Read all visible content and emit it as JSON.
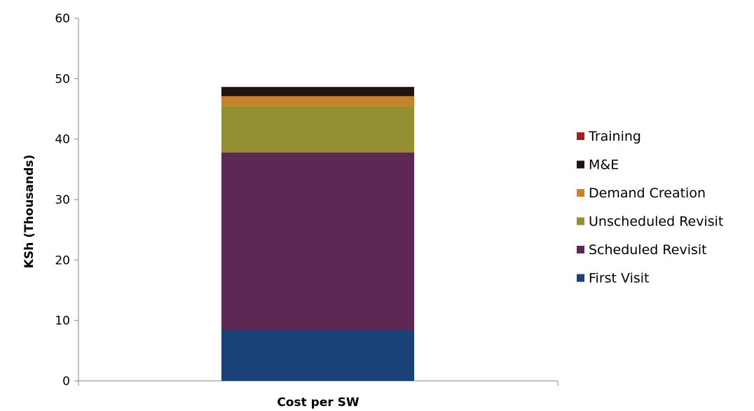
{
  "chart_data": {
    "type": "bar",
    "stacked": true,
    "categories": [
      "Cost per SW"
    ],
    "series": [
      {
        "name": "First Visit",
        "values": [
          8.4
        ],
        "color": "#1a4178"
      },
      {
        "name": "Scheduled Revisit",
        "values": [
          29.4
        ],
        "color": "#5e2855"
      },
      {
        "name": "Unscheduled Revisit",
        "values": [
          7.7
        ],
        "color": "#958f33"
      },
      {
        "name": "Demand Creation",
        "values": [
          1.6
        ],
        "color": "#c8832a"
      },
      {
        "name": "M&E",
        "values": [
          1.5
        ],
        "color": "#21130f"
      },
      {
        "name": "Training",
        "values": [
          0.05
        ],
        "color": "#a3201f"
      }
    ],
    "xlabel": "Cost per SW",
    "ylabel": "KSh (Thousands)",
    "ylim": [
      0,
      60
    ],
    "yticks": [
      0,
      10,
      20,
      30,
      40,
      50,
      60
    ],
    "grid": false,
    "legend_position": "right",
    "legend_order": [
      "Training",
      "M&E",
      "Demand Creation",
      "Unscheduled Revisit",
      "Scheduled Revisit",
      "First Visit"
    ]
  }
}
